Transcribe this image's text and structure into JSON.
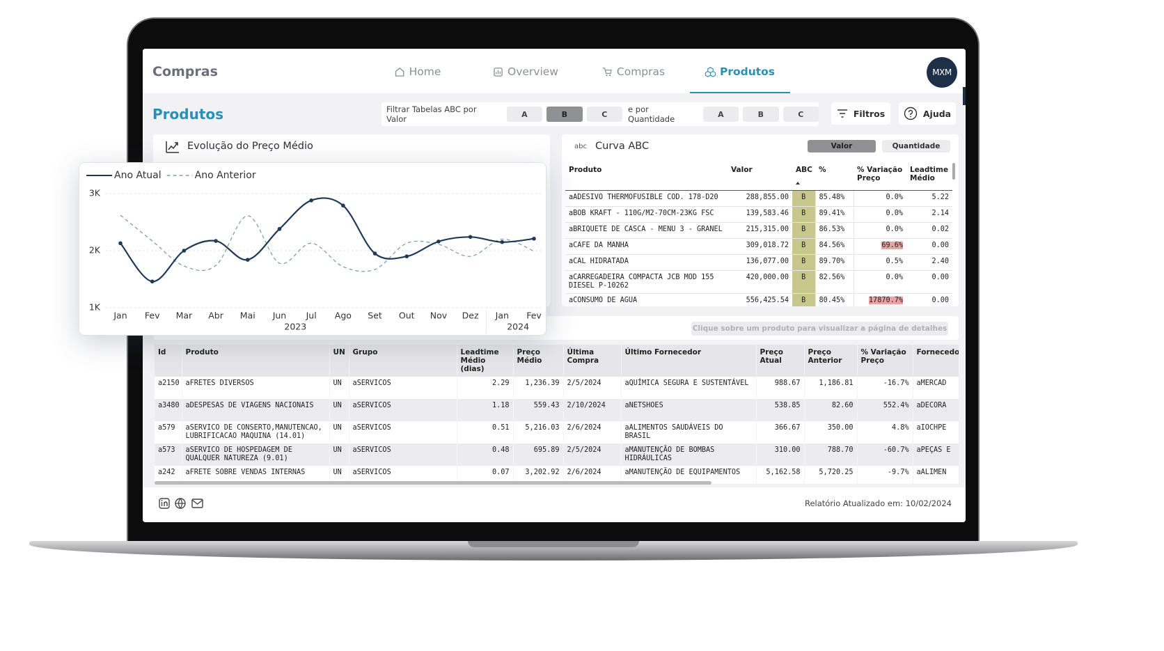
{
  "header": {
    "app_title": "Compras",
    "nav": [
      {
        "label": "Home"
      },
      {
        "label": "Overview"
      },
      {
        "label": "Compras"
      },
      {
        "label": "Produtos",
        "active": true
      }
    ],
    "avatar": "MXM"
  },
  "page_title": "Produtos",
  "filters": {
    "value_label": "Filtrar Tabelas ABC por Valor",
    "value_options": [
      {
        "label": "A"
      },
      {
        "label": "B",
        "selected": true
      },
      {
        "label": "C"
      }
    ],
    "quantity_label": "e por Quantidade",
    "quantity_options": [
      {
        "label": "A"
      },
      {
        "label": "B"
      },
      {
        "label": "C"
      }
    ],
    "filters_button": "Filtros",
    "help_button": "Ajuda"
  },
  "price_card": {
    "title": "Evolução do Preço Médio"
  },
  "chart_data": {
    "type": "line",
    "categories": [
      "Jan",
      "Fev",
      "Mar",
      "Abr",
      "Mai",
      "Jun",
      "Jul",
      "Ago",
      "Set",
      "Out",
      "Nov",
      "Dez",
      "Jan",
      "Fev"
    ],
    "category_years": [
      "2023",
      "2023",
      "2023",
      "2023",
      "2023",
      "2023",
      "2023",
      "2023",
      "2023",
      "2023",
      "2023",
      "2023",
      "2024",
      "2024"
    ],
    "series": [
      {
        "name": "Ano Atual",
        "color": "#1f3a55",
        "line_style": "solid",
        "markers": true,
        "values": [
          2130,
          1460,
          2000,
          2170,
          1840,
          2380,
          2880,
          2790,
          1950,
          1900,
          2160,
          2240,
          2150,
          2210
        ]
      },
      {
        "name": "Ano Anterior",
        "color": "#7f9fb4",
        "line_style": "dashed",
        "markers": false,
        "values": [
          2620,
          2170,
          1730,
          1740,
          2610,
          1780,
          2130,
          1720,
          1670,
          2130,
          2110,
          1900,
          2200,
          1990
        ]
      }
    ],
    "ylim": [
      1000,
      3000
    ],
    "yticks": [
      {
        "value": 1000,
        "label": "1K"
      },
      {
        "value": 2000,
        "label": "2K"
      },
      {
        "value": 3000,
        "label": "3K"
      }
    ],
    "grid": true,
    "legend": "top-left"
  },
  "abc_card": {
    "icon": "abc",
    "title": "Curva ABC",
    "toggle": [
      {
        "label": "Valor",
        "selected": true
      },
      {
        "label": "Quantidade"
      }
    ],
    "columns": [
      "Produto",
      "Valor",
      "ABC",
      "%",
      "% Variação Preço",
      "Leadtime Médio"
    ],
    "rows": [
      [
        "aADESIVO THERMOFUSIBLE COD. 178-D20",
        "288,855.00",
        "B",
        "85.48%",
        "0.0%",
        "5.22"
      ],
      [
        "aBOB KRAFT - 110G/M2-70CM-23KG FSC",
        "139,583.46",
        "B",
        "89.41%",
        "0.0%",
        "2.14"
      ],
      [
        "aBRIQUETE DE CASCA - MENU 3 - GRANEL",
        "215,315.00",
        "B",
        "86.53%",
        "0.0%",
        "0.02"
      ],
      [
        "aCAFE DA MANHA",
        "309,018.72",
        "B",
        "84.56%",
        "69.6%",
        "0.00"
      ],
      [
        "aCAL HIDRATADA",
        "136,077.00",
        "B",
        "89.70%",
        "0.5%",
        "2.40"
      ],
      [
        "aCARREGADEIRA COMPACTA JCB MOD 155 DIESEL P-10262",
        "420,000.00",
        "B",
        "82.56%",
        "0.0%",
        "0.00"
      ],
      [
        "aCONSUMO DE AGUA",
        "556,425.54",
        "B",
        "80.45%",
        "17870.7%",
        "0.00"
      ]
    ]
  },
  "products_table": {
    "hint": "Clique sobre um produto para visualizar a página de detalhes",
    "columns": [
      "Id",
      "Produto",
      "UN",
      "Grupo",
      "Leadtime Médio (dias)",
      "Preço Médio",
      "Última Compra",
      "Último Fornecedor",
      "Preço Atual",
      "Preço Anterior",
      "% Variação Preço",
      "Fornecedor"
    ],
    "rows": [
      [
        "a2150",
        "aFRETES DIVERSOS",
        "UN",
        "aSERVICOS",
        "2.29",
        "1,236.39",
        "2/5/2024",
        "aQUÍMICA SEGURA E SUSTENTÁVEL",
        "988.67",
        "1,186.81",
        "-16.7%",
        "aMERCAD"
      ],
      [
        "a3480",
        "aDESPESAS DE VIAGENS NACIONAIS",
        "UN",
        "aSERVICOS",
        "1.18",
        "559.43",
        "2/10/2024",
        "aNETSHOES",
        "538.85",
        "82.60",
        "552.4%",
        "aDECORA"
      ],
      [
        "a579",
        "aSERVICO DE CONSERTO,MANUTENCAO, LUBRIFICACAO MAQUINA (14.01)",
        "UN",
        "aSERVICOS",
        "0.51",
        "5,216.03",
        "2/6/2024",
        "aALIMENTOS SAUDÁVEIS DO BRASIL",
        "366.67",
        "350.00",
        "4.8%",
        "aIOCHPE"
      ],
      [
        "a573",
        "aSERVICO DE HOSPEDAGEM DE QUALQUER NATUREZA (9.01)",
        "UN",
        "aSERVICOS",
        "0.48",
        "695.89",
        "2/5/2024",
        "aMANUTENÇÃO DE BOMBAS HIDRÁULICAS",
        "310.00",
        "788.70",
        "-60.7%",
        "aPEÇAS E"
      ],
      [
        "a242",
        "aFRETE SOBRE VENDAS INTERNAS",
        "UN",
        "aSERVICOS",
        "0.07",
        "3,202.92",
        "2/6/2024",
        "aMANUTENÇÃO DE EQUIPAMENTOS",
        "5,162.58",
        "5,720.25",
        "-9.7%",
        "aALIMEN"
      ]
    ]
  },
  "footer": {
    "updated": "Relatório Atualizado em: 10/02/2024"
  }
}
